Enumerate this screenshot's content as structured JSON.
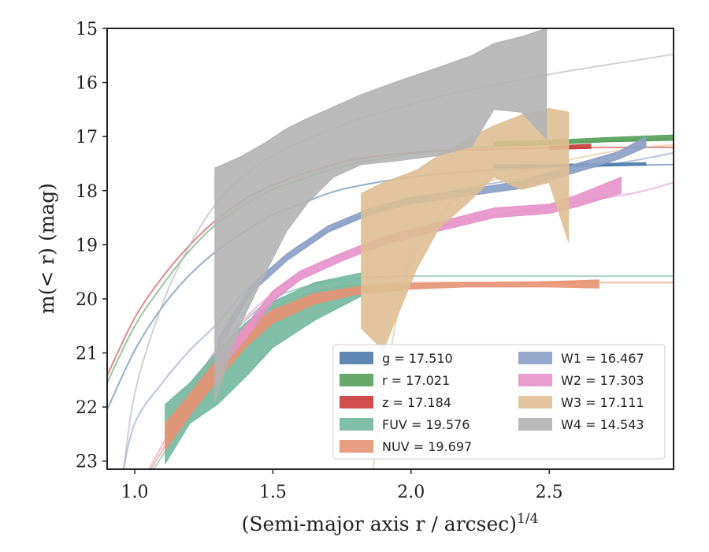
{
  "chart_data": {
    "type": "area",
    "xlabel": "(Semi-major axis r / arcsec)",
    "xlabel_exponent": "1/4",
    "ylabel": "m(< r) (mag)",
    "xlim": [
      0.9,
      2.95
    ],
    "ylim": [
      23.15,
      15.0
    ],
    "y_inverted": true,
    "grid": false,
    "legend_position": "lower right",
    "xticks": [
      1.0,
      1.5,
      2.0,
      2.5
    ],
    "xtick_labels": [
      "1.0",
      "1.5",
      "2.0",
      "2.5"
    ],
    "yticks": [
      15,
      16,
      17,
      18,
      19,
      20,
      21,
      22,
      23
    ],
    "ytick_labels": [
      "15",
      "16",
      "17",
      "18",
      "19",
      "20",
      "21",
      "22",
      "23"
    ],
    "series": [
      {
        "name": "g",
        "value": "17.510",
        "color": "#4c7bab",
        "model": [
          [
            0.9,
            22.05
          ],
          [
            1.0,
            20.95
          ],
          [
            1.1,
            20.15
          ],
          [
            1.2,
            19.55
          ],
          [
            1.3,
            19.1
          ],
          [
            1.4,
            18.75
          ],
          [
            1.5,
            18.45
          ],
          [
            1.6,
            18.25
          ],
          [
            1.7,
            18.05
          ],
          [
            1.8,
            17.92
          ],
          [
            2.0,
            17.75
          ],
          [
            2.2,
            17.65
          ],
          [
            2.5,
            17.57
          ],
          [
            2.8,
            17.53
          ],
          [
            2.95,
            17.52
          ]
        ],
        "band": [
          [
            2.3,
            17.52,
            17.58
          ],
          [
            2.5,
            17.52,
            17.56
          ],
          [
            2.65,
            17.5,
            17.55
          ],
          [
            2.85,
            17.48,
            17.53
          ]
        ]
      },
      {
        "name": "r",
        "value": "17.021",
        "color": "#55a05a",
        "model": [
          [
            0.9,
            21.55
          ],
          [
            1.0,
            20.5
          ],
          [
            1.1,
            19.75
          ],
          [
            1.2,
            19.1
          ],
          [
            1.3,
            18.6
          ],
          [
            1.4,
            18.25
          ],
          [
            1.5,
            17.98
          ],
          [
            1.6,
            17.8
          ],
          [
            1.7,
            17.62
          ],
          [
            1.8,
            17.5
          ],
          [
            2.0,
            17.32
          ],
          [
            2.2,
            17.22
          ],
          [
            2.5,
            17.12
          ],
          [
            2.8,
            17.06
          ],
          [
            2.95,
            17.03
          ]
        ],
        "band": [
          [
            2.3,
            17.1,
            17.18
          ],
          [
            2.5,
            17.07,
            17.15
          ],
          [
            2.7,
            17.02,
            17.1
          ],
          [
            2.95,
            16.97,
            17.07
          ]
        ]
      },
      {
        "name": "z",
        "value": "17.184",
        "color": "#cc3b3b",
        "model": [
          [
            0.9,
            21.42
          ],
          [
            1.0,
            20.35
          ],
          [
            1.1,
            19.6
          ],
          [
            1.2,
            19.0
          ],
          [
            1.3,
            18.52
          ],
          [
            1.4,
            18.15
          ],
          [
            1.5,
            17.9
          ],
          [
            1.6,
            17.7
          ],
          [
            1.7,
            17.55
          ],
          [
            1.8,
            17.42
          ],
          [
            2.0,
            17.3
          ],
          [
            2.2,
            17.25
          ],
          [
            2.5,
            17.21
          ],
          [
            2.8,
            17.2
          ],
          [
            2.95,
            17.2
          ]
        ],
        "band": [
          [
            2.5,
            17.18,
            17.24
          ],
          [
            2.65,
            17.14,
            17.22
          ]
        ]
      },
      {
        "name": "FUV",
        "value": "19.576",
        "color": "#73b8a0",
        "model": [
          [
            1.0,
            23.6
          ],
          [
            1.1,
            22.9
          ],
          [
            1.2,
            21.9
          ],
          [
            1.3,
            21.0
          ],
          [
            1.4,
            20.4
          ],
          [
            1.5,
            20.0
          ],
          [
            1.6,
            19.8
          ],
          [
            1.7,
            19.68
          ],
          [
            1.8,
            19.62
          ],
          [
            2.0,
            19.58
          ],
          [
            2.5,
            19.58
          ],
          [
            2.95,
            19.58
          ]
        ],
        "band": [
          [
            1.11,
            21.95,
            23.05
          ],
          [
            1.2,
            21.55,
            22.3
          ],
          [
            1.3,
            20.95,
            21.95
          ],
          [
            1.4,
            20.45,
            21.45
          ],
          [
            1.5,
            20.05,
            20.9
          ],
          [
            1.65,
            19.7,
            20.4
          ],
          [
            1.82,
            19.52,
            19.95
          ]
        ]
      },
      {
        "name": "NUV",
        "value": "19.697",
        "color": "#e89373",
        "model": [
          [
            1.0,
            23.6
          ],
          [
            1.1,
            22.8
          ],
          [
            1.2,
            21.85
          ],
          [
            1.3,
            21.05
          ],
          [
            1.4,
            20.5
          ],
          [
            1.5,
            20.15
          ],
          [
            1.6,
            19.95
          ],
          [
            1.7,
            19.82
          ],
          [
            1.8,
            19.75
          ],
          [
            2.0,
            19.7
          ],
          [
            2.5,
            19.7
          ],
          [
            2.95,
            19.7
          ]
        ],
        "band": [
          [
            1.11,
            22.3,
            22.8
          ],
          [
            1.2,
            21.75,
            22.15
          ],
          [
            1.3,
            21.1,
            21.5
          ],
          [
            1.4,
            20.55,
            20.9
          ],
          [
            1.5,
            20.2,
            20.45
          ],
          [
            1.65,
            19.9,
            20.1
          ],
          [
            1.8,
            19.78,
            19.92
          ],
          [
            2.0,
            19.72,
            19.82
          ],
          [
            2.2,
            19.7,
            19.78
          ],
          [
            2.5,
            19.68,
            19.78
          ],
          [
            2.68,
            19.65,
            19.8
          ]
        ]
      },
      {
        "name": "W1",
        "value": "16.467",
        "color": "#8a9fc6",
        "model": [
          [
            0.95,
            23.4
          ],
          [
            1.0,
            22.3
          ],
          [
            1.1,
            21.55
          ],
          [
            1.2,
            20.95
          ],
          [
            1.3,
            20.45
          ],
          [
            1.4,
            19.85
          ],
          [
            1.5,
            19.4
          ],
          [
            1.6,
            19.0
          ],
          [
            1.7,
            18.75
          ],
          [
            1.8,
            18.5
          ],
          [
            2.0,
            18.2
          ],
          [
            2.2,
            17.95
          ],
          [
            2.5,
            17.7
          ],
          [
            2.8,
            17.45
          ],
          [
            2.95,
            17.3
          ]
        ],
        "band": [
          [
            1.3,
            20.75,
            20.95
          ],
          [
            1.42,
            19.75,
            19.9
          ],
          [
            1.55,
            19.17,
            19.3
          ],
          [
            1.7,
            18.65,
            18.77
          ],
          [
            1.85,
            18.33,
            18.45
          ],
          [
            2.0,
            18.12,
            18.25
          ],
          [
            2.2,
            17.98,
            18.1
          ],
          [
            2.4,
            17.82,
            17.96
          ],
          [
            2.6,
            17.5,
            17.66
          ],
          [
            2.75,
            17.28,
            17.42
          ],
          [
            2.85,
            17.0,
            17.2
          ]
        ]
      },
      {
        "name": "W2",
        "value": "17.303",
        "color": "#e592c9",
        "model": [
          [
            1.0,
            23.6
          ],
          [
            1.1,
            22.7
          ],
          [
            1.2,
            21.7
          ],
          [
            1.3,
            20.9
          ],
          [
            1.4,
            20.35
          ],
          [
            1.5,
            19.9
          ],
          [
            1.6,
            19.55
          ],
          [
            1.7,
            19.3
          ],
          [
            1.8,
            19.1
          ],
          [
            2.0,
            18.8
          ],
          [
            2.2,
            18.55
          ],
          [
            2.5,
            18.3
          ],
          [
            2.8,
            18.05
          ],
          [
            2.95,
            17.85
          ]
        ],
        "band": [
          [
            1.3,
            21.05,
            21.35
          ],
          [
            1.4,
            20.5,
            20.75
          ],
          [
            1.5,
            19.85,
            20.05
          ],
          [
            1.6,
            19.48,
            19.65
          ],
          [
            1.75,
            19.15,
            19.3
          ],
          [
            1.9,
            18.85,
            19.0
          ],
          [
            2.1,
            18.58,
            18.75
          ],
          [
            2.3,
            18.32,
            18.5
          ],
          [
            2.5,
            18.25,
            18.42
          ],
          [
            2.6,
            18.08,
            18.3
          ],
          [
            2.76,
            17.75,
            18.05
          ]
        ]
      },
      {
        "name": "W3",
        "value": "17.111",
        "color": "#dfbf93",
        "model": [
          [
            1.85,
            23.6
          ],
          [
            1.9,
            21.8
          ],
          [
            1.95,
            20.3
          ],
          [
            2.0,
            19.3
          ],
          [
            2.1,
            18.5
          ],
          [
            2.2,
            18.0
          ],
          [
            2.4,
            17.65
          ],
          [
            2.6,
            17.4
          ],
          [
            2.8,
            17.22
          ],
          [
            2.95,
            17.15
          ]
        ],
        "band": [
          [
            1.82,
            18.05,
            20.55
          ],
          [
            1.9,
            17.85,
            20.95
          ],
          [
            2.02,
            17.62,
            19.45
          ],
          [
            2.1,
            17.35,
            18.7
          ],
          [
            2.2,
            17.05,
            18.25
          ],
          [
            2.3,
            16.8,
            17.75
          ],
          [
            2.4,
            16.6,
            17.98
          ],
          [
            2.5,
            16.48,
            17.85
          ],
          [
            2.57,
            16.55,
            18.95
          ]
        ]
      },
      {
        "name": "W4",
        "value": "14.543",
        "color": "#b3b3b3",
        "model": [
          [
            0.95,
            23.6
          ],
          [
            1.0,
            21.75
          ],
          [
            1.1,
            20.1
          ],
          [
            1.2,
            19.0
          ],
          [
            1.3,
            18.2
          ],
          [
            1.4,
            17.7
          ],
          [
            1.5,
            17.35
          ],
          [
            1.6,
            17.1
          ],
          [
            1.8,
            16.7
          ],
          [
            2.0,
            16.4
          ],
          [
            2.2,
            16.15
          ],
          [
            2.5,
            15.85
          ],
          [
            2.8,
            15.6
          ],
          [
            2.95,
            15.48
          ]
        ],
        "band": [
          [
            1.29,
            17.58,
            21.9
          ],
          [
            1.38,
            17.38,
            20.5
          ],
          [
            1.47,
            17.12,
            19.55
          ],
          [
            1.55,
            16.85,
            18.75
          ],
          [
            1.63,
            16.65,
            18.2
          ],
          [
            1.72,
            16.45,
            17.75
          ],
          [
            1.82,
            16.22,
            17.52
          ],
          [
            1.95,
            15.98,
            17.45
          ],
          [
            2.1,
            15.72,
            17.35
          ],
          [
            2.22,
            15.5,
            17.18
          ],
          [
            2.3,
            15.28,
            16.5
          ],
          [
            2.4,
            15.15,
            16.55
          ],
          [
            2.49,
            15.0,
            17.05
          ]
        ]
      }
    ]
  },
  "legend": {
    "labels": [
      "g = 17.510",
      "r = 17.021",
      "z = 17.184",
      "FUV = 19.576",
      "NUV = 19.697",
      "W1 = 16.467",
      "W2 = 17.303",
      "W3 = 17.111",
      "W4 = 14.543"
    ]
  }
}
